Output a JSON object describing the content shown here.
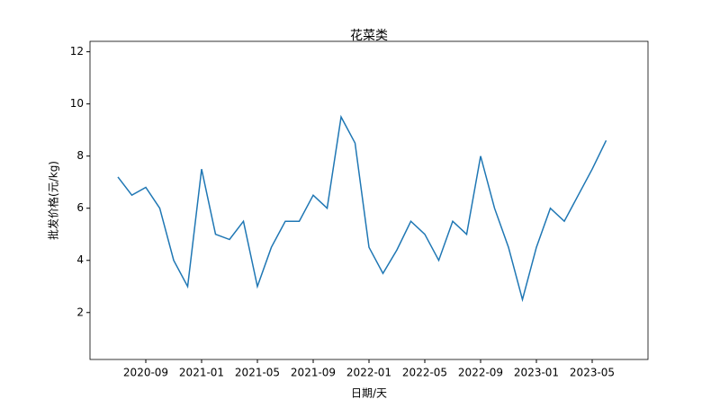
{
  "chart_data": {
    "type": "line",
    "title": "花菜类",
    "x_label": "日期/天",
    "y_label": "批发价格(元/kg)",
    "x": [
      "2020-07",
      "2020-08",
      "2020-09",
      "2020-10",
      "2020-11",
      "2020-12",
      "2021-01",
      "2021-02",
      "2021-03",
      "2021-04",
      "2021-05",
      "2021-06",
      "2021-07",
      "2021-08",
      "2021-09",
      "2021-10",
      "2021-11",
      "2021-12",
      "2022-01",
      "2022-02",
      "2022-03",
      "2022-04",
      "2022-05",
      "2022-06",
      "2022-07",
      "2022-08",
      "2022-09",
      "2022-10",
      "2022-11",
      "2022-12",
      "2023-01",
      "2023-02",
      "2023-03",
      "2023-04",
      "2023-05",
      "2023-06"
    ],
    "series": [
      {
        "name": "花菜类",
        "color": "#1f77b4",
        "values": [
          7.2,
          6.5,
          6.8,
          6.0,
          4.0,
          3.0,
          7.5,
          5.0,
          4.8,
          5.5,
          3.0,
          4.5,
          5.5,
          5.5,
          6.5,
          6.0,
          9.5,
          8.5,
          4.5,
          3.5,
          4.4,
          5.5,
          5.0,
          4.0,
          5.5,
          5.0,
          8.0,
          6.0,
          4.5,
          2.5,
          4.5,
          6.0,
          5.5,
          6.5,
          7.5,
          8.6
        ]
      }
    ],
    "xlim": [
      "2020-05",
      "2023-09"
    ],
    "xticks": [
      "2020-09",
      "2021-01",
      "2021-05",
      "2021-09",
      "2022-01",
      "2022-05",
      "2022-09",
      "2023-01",
      "2023-05"
    ],
    "ylim": [
      0.2,
      12.4
    ],
    "yticks": [
      2,
      4,
      6,
      8,
      10,
      12
    ]
  }
}
